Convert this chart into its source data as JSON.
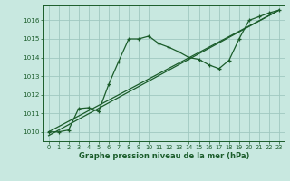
{
  "xlabel": "Graphe pression niveau de la mer (hPa)",
  "bg_color": "#c8e8e0",
  "grid_color": "#a0c8c0",
  "line_color": "#1a5c2a",
  "xlim": [
    -0.5,
    23.5
  ],
  "ylim": [
    1009.5,
    1016.8
  ],
  "xticks": [
    0,
    1,
    2,
    3,
    4,
    5,
    6,
    7,
    8,
    9,
    10,
    11,
    12,
    13,
    14,
    15,
    16,
    17,
    18,
    19,
    20,
    21,
    22,
    23
  ],
  "yticks": [
    1010,
    1011,
    1012,
    1013,
    1014,
    1015,
    1016
  ],
  "line1_x": [
    0,
    1,
    2,
    3,
    4,
    5,
    6,
    7,
    8,
    9,
    10,
    11,
    12,
    13,
    14,
    15,
    16,
    17,
    18,
    19,
    20,
    21,
    22,
    23
  ],
  "line1_y": [
    1010.0,
    1010.0,
    1010.1,
    1011.25,
    1011.3,
    1011.1,
    1012.55,
    1013.8,
    1015.0,
    1015.0,
    1015.15,
    1014.75,
    1014.55,
    1014.3,
    1014.0,
    1013.9,
    1013.6,
    1013.4,
    1013.85,
    1015.0,
    1016.0,
    1016.2,
    1016.4,
    1016.55
  ],
  "line2_x": [
    0,
    23
  ],
  "line2_y": [
    1010.0,
    1016.55
  ],
  "line3_x": [
    0,
    23
  ],
  "line3_y": [
    1009.8,
    1016.55
  ]
}
